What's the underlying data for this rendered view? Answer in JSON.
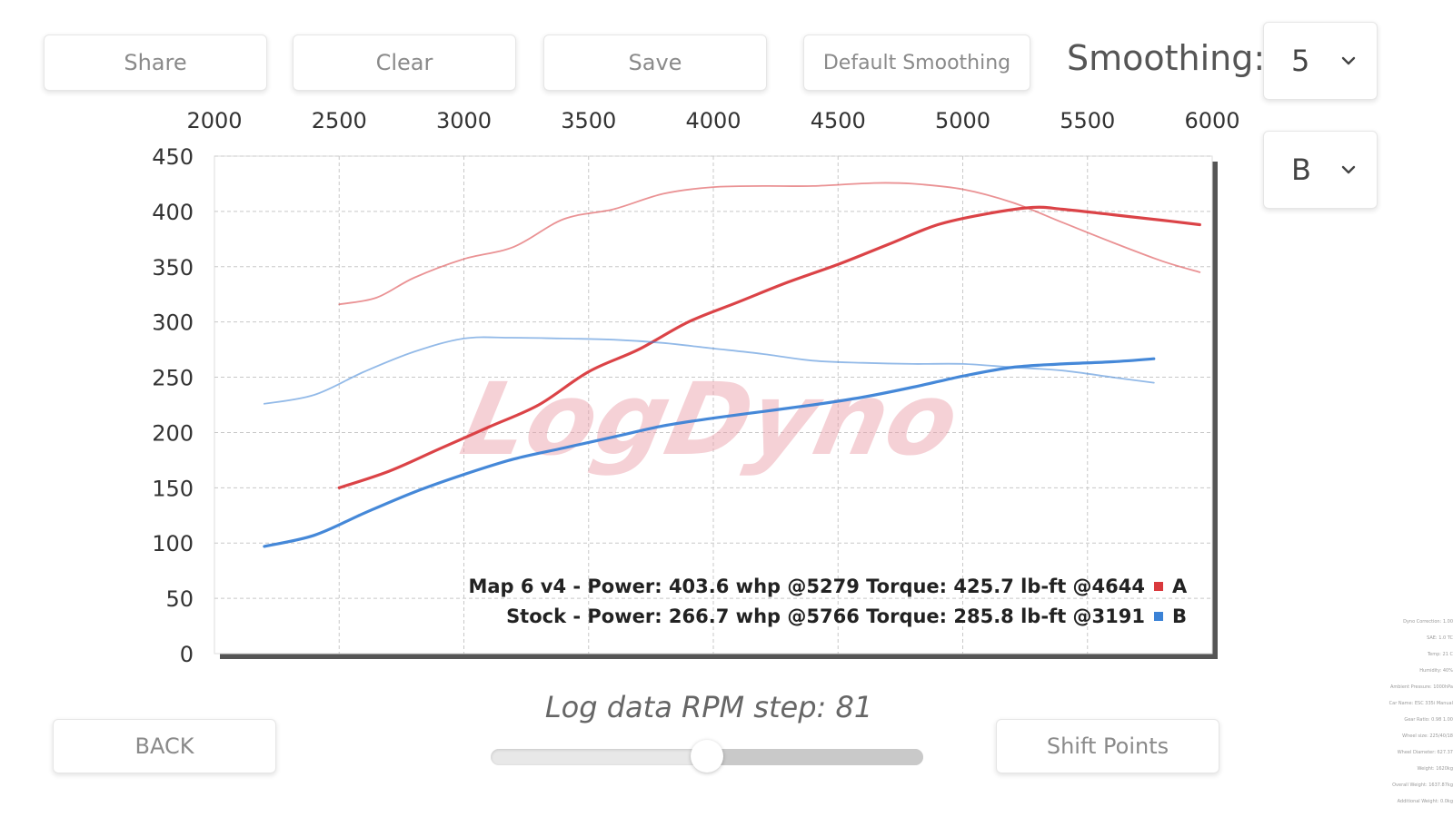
{
  "toolbar": {
    "share_label": "Share",
    "clear_label": "Clear",
    "save_label": "Save",
    "default_smoothing_label": "Default Smoothing",
    "smoothing_label": "Smoothing:",
    "smoothing_value": "5",
    "curve_select_value": "B"
  },
  "footer": {
    "back_label": "BACK",
    "shift_points_label": "Shift Points",
    "rpm_step_text": "Log data RPM step: 81",
    "slider_value_fraction": 0.5
  },
  "watermark": "LogDyno",
  "info_panel": {
    "lines": [
      "Dyno Correction: 1.00",
      "SAE: 1.0 TC",
      "Temp: 21 C",
      "Humidity: 40%",
      "Ambient Pressure: 1000hPa",
      "Car Name: ESC 335i Manual",
      "Gear Ratio: 0.98 1.00",
      "Wheel size: 225/40/18",
      "Wheel Diameter: 627.37",
      "Weight: 1620kg",
      "Overall Weight: 1637.87kg",
      "Additional Weight: 0.0kg"
    ]
  },
  "colors": {
    "run_a": "#d9393d",
    "run_b": "#3b82d6",
    "watermark": "#e89aa4"
  },
  "chart_data": {
    "type": "line",
    "x_tick_labels": [
      "2000",
      "2500",
      "3000",
      "3500",
      "4000",
      "4500",
      "5000",
      "5500",
      "6000"
    ],
    "y_tick_labels": [
      "0",
      "50",
      "100",
      "150",
      "200",
      "250",
      "300",
      "350",
      "400",
      "450"
    ],
    "xlim": [
      2000,
      6000
    ],
    "ylim": [
      0,
      450
    ],
    "x_axis_position": "top",
    "grid": true,
    "legend_position": "bottom-right",
    "legend": [
      {
        "text": "Map 6 v4 - Power: 403.6 whp @5279 Torque: 425.7 lb-ft @4644",
        "marker_label": "A",
        "color": "#d9393d"
      },
      {
        "text": "Stock - Power: 266.7 whp @5766 Torque: 285.8 lb-ft @3191",
        "marker_label": "B",
        "color": "#3b82d6"
      }
    ],
    "series": [
      {
        "run": "A",
        "quantity": "power",
        "color": "#d9393d",
        "x": [
          2500,
          2700,
          2900,
          3100,
          3300,
          3500,
          3700,
          3900,
          4100,
          4300,
          4500,
          4700,
          4900,
          5100,
          5279,
          5400,
          5600,
          5800,
          5950
        ],
        "y": [
          150,
          165,
          185,
          205,
          225,
          255,
          275,
          300,
          318,
          336,
          352,
          370,
          388,
          398,
          403.6,
          402,
          397,
          392,
          388
        ]
      },
      {
        "run": "A",
        "quantity": "torque",
        "color": "#d9393d",
        "x": [
          2500,
          2650,
          2800,
          3000,
          3200,
          3400,
          3600,
          3800,
          4000,
          4200,
          4400,
          4644,
          4800,
          5000,
          5200,
          5400,
          5600,
          5800,
          5950
        ],
        "y": [
          316,
          322,
          340,
          357,
          368,
          393,
          402,
          416,
          422,
          423,
          423,
          425.7,
          425,
          420,
          408,
          390,
          372,
          355,
          345
        ]
      },
      {
        "run": "B",
        "quantity": "power",
        "color": "#3b82d6",
        "x": [
          2200,
          2400,
          2600,
          2800,
          3000,
          3200,
          3400,
          3600,
          3800,
          4000,
          4200,
          4400,
          4600,
          4800,
          5000,
          5200,
          5400,
          5600,
          5766
        ],
        "y": [
          97,
          107,
          127,
          146,
          162,
          176,
          186,
          196,
          206,
          213,
          219,
          225,
          232,
          241,
          251,
          259,
          262,
          264,
          266.7
        ]
      },
      {
        "run": "B",
        "quantity": "torque",
        "color": "#3b82d6",
        "x": [
          2200,
          2400,
          2600,
          2800,
          3000,
          3191,
          3400,
          3600,
          3800,
          4000,
          4200,
          4400,
          4600,
          4800,
          5000,
          5200,
          5400,
          5600,
          5766
        ],
        "y": [
          226,
          234,
          255,
          273,
          285,
          285.8,
          285,
          284,
          281,
          276,
          271,
          265,
          263,
          262,
          262,
          259,
          256,
          250,
          245
        ]
      }
    ]
  }
}
